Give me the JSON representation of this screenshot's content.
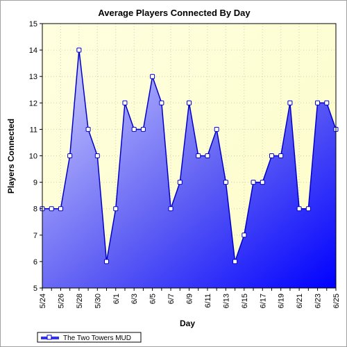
{
  "chart_data": {
    "type": "area",
    "title": "Average Players Connected By Day",
    "xlabel": "Day",
    "ylabel": "Players Connected",
    "ylim": [
      5,
      15
    ],
    "y_ticks": [
      5,
      6,
      7,
      8,
      9,
      10,
      11,
      12,
      13,
      14,
      15
    ],
    "x_tick_labels": [
      "5/24",
      "5/26",
      "5/28",
      "5/30",
      "6/1",
      "6/3",
      "6/5",
      "6/7",
      "6/9",
      "6/11",
      "6/13",
      "6/15",
      "6/17",
      "6/19",
      "6/21",
      "6/23",
      "6/25"
    ],
    "grid": true,
    "legend_position": "bottom-left",
    "series": [
      {
        "name": "The Two Towers MUD",
        "color": "#0000ff",
        "x": [
          "5/24",
          "5/25",
          "5/26",
          "5/27",
          "5/28",
          "5/29",
          "5/30",
          "5/31",
          "6/1",
          "6/2",
          "6/3",
          "6/4",
          "6/5",
          "6/6",
          "6/7",
          "6/8",
          "6/9",
          "6/10",
          "6/11",
          "6/12",
          "6/13",
          "6/14",
          "6/15",
          "6/16",
          "6/17",
          "6/18",
          "6/19",
          "6/20",
          "6/21",
          "6/22",
          "6/23",
          "6/24",
          "6/25"
        ],
        "values": [
          8,
          8,
          8,
          10,
          14,
          11,
          10,
          6,
          8,
          12,
          11,
          11,
          13,
          12,
          8,
          9,
          12,
          10,
          10,
          11,
          9,
          6,
          7,
          9,
          9,
          10,
          10,
          12,
          8,
          8,
          12,
          12,
          11
        ]
      }
    ]
  }
}
